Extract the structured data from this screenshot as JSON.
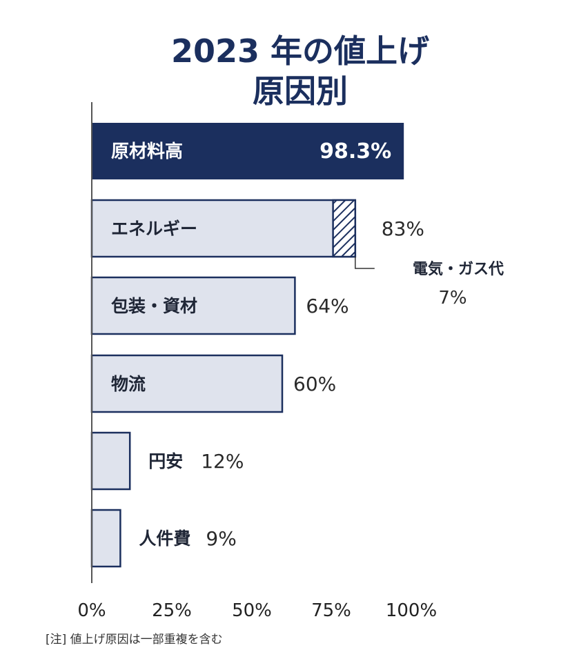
{
  "chart_data": {
    "type": "bar",
    "orientation": "horizontal",
    "title_lines": [
      "2023 年の値上げ",
      "原因別"
    ],
    "categories": [
      "原材料高",
      "エネルギー",
      "包装・資材",
      "物流",
      "円安",
      "人件費"
    ],
    "values": [
      98.3,
      83,
      64,
      60,
      12,
      9
    ],
    "value_labels": [
      "98.3%",
      "83%",
      "64%",
      "60%",
      "12%",
      "9%"
    ],
    "xlim": [
      0,
      100
    ],
    "x_ticks": [
      "0%",
      "25%",
      "50%",
      "75%",
      "100%"
    ],
    "sub_segment": {
      "category": "エネルギー",
      "label": "電気・ガス代",
      "value": 7,
      "value_label": "7%"
    },
    "note": "[注] 値上げ原因は一部重複を含む",
    "colors": {
      "highlight_fill": "#1b2f5e",
      "bar_fill": "#dfe3ed",
      "bar_stroke": "#1b2f5e",
      "axis": "#555555"
    }
  }
}
